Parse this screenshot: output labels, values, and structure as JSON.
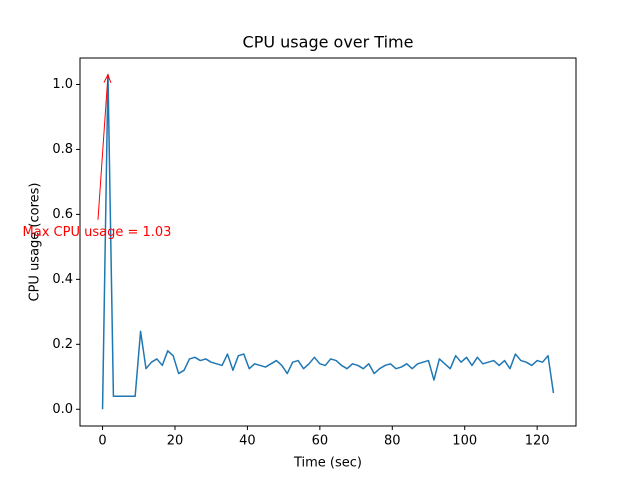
{
  "chart_data": {
    "type": "line",
    "title": "CPU usage over Time",
    "xlabel": "Time (sec)",
    "ylabel": "CPU usage (cores)",
    "x": [
      0,
      1.5,
      3,
      4.5,
      6,
      7.5,
      9,
      10.5,
      12,
      13.5,
      15,
      16.5,
      18,
      19.5,
      21,
      22.5,
      24,
      25.5,
      27,
      28.5,
      30,
      31.5,
      33,
      34.5,
      36,
      37.5,
      39,
      40.5,
      42,
      43.5,
      45,
      46.5,
      48,
      49.5,
      51,
      52.5,
      54,
      55.5,
      57,
      58.5,
      60,
      61.5,
      63,
      64.5,
      66,
      67.5,
      69,
      70.5,
      72,
      73.5,
      75,
      76.5,
      78,
      79.5,
      81,
      82.5,
      84,
      85.5,
      87,
      88.5,
      90,
      91.5,
      93,
      94.5,
      96,
      97.5,
      99,
      100.5,
      102,
      103.5,
      105,
      106.5,
      108,
      109.5,
      111,
      112.5,
      114,
      115.5,
      117,
      118.5,
      120,
      121.5,
      123,
      124.5
    ],
    "series": [
      {
        "color": "#1f77b4",
        "values": [
          0.0,
          1.03,
          0.04,
          0.04,
          0.04,
          0.04,
          0.04,
          0.24,
          0.125,
          0.145,
          0.155,
          0.135,
          0.18,
          0.165,
          0.11,
          0.12,
          0.155,
          0.16,
          0.15,
          0.155,
          0.145,
          0.14,
          0.135,
          0.17,
          0.12,
          0.165,
          0.17,
          0.125,
          0.14,
          0.135,
          0.13,
          0.14,
          0.15,
          0.135,
          0.11,
          0.145,
          0.15,
          0.125,
          0.14,
          0.16,
          0.14,
          0.135,
          0.155,
          0.15,
          0.135,
          0.125,
          0.14,
          0.135,
          0.125,
          0.14,
          0.11,
          0.125,
          0.135,
          0.14,
          0.125,
          0.13,
          0.14,
          0.125,
          0.14,
          0.145,
          0.15,
          0.09,
          0.155,
          0.14,
          0.125,
          0.165,
          0.145,
          0.16,
          0.135,
          0.16,
          0.14,
          0.145,
          0.15,
          0.135,
          0.15,
          0.125,
          0.17,
          0.15,
          0.145,
          0.135,
          0.15,
          0.145,
          0.165,
          0.05
        ]
      }
    ],
    "annotation": {
      "text": "Max CPU usage = 1.03",
      "color": "#ff0000"
    },
    "xlim": [
      -6.225,
      130.725
    ],
    "ylim": [
      -0.0515,
      1.0815
    ],
    "xticks": [
      0,
      20,
      40,
      60,
      80,
      100,
      120
    ],
    "yticks": [
      {
        "value": 0,
        "label": "0.0"
      },
      {
        "value": 0.2,
        "label": "0.2"
      },
      {
        "value": 0.4,
        "label": "0.4"
      },
      {
        "value": 0.6,
        "label": "0.6"
      },
      {
        "value": 0.8,
        "label": "0.8"
      },
      {
        "value": 1,
        "label": "1.0"
      }
    ]
  }
}
